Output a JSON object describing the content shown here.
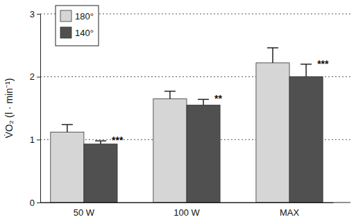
{
  "chart_data": {
    "type": "bar",
    "y_label": "V̇O₂ (l · min⁻¹)",
    "categories": [
      "50 W",
      "100 W",
      "MAX"
    ],
    "series": [
      {
        "name": "180°",
        "color": "#d6d6d6",
        "values": [
          1.12,
          1.65,
          2.22
        ],
        "errors": [
          0.12,
          0.12,
          0.24
        ]
      },
      {
        "name": "140°",
        "color": "#505050",
        "values": [
          0.93,
          1.55,
          2.0
        ],
        "errors": [
          0.05,
          0.09,
          0.2
        ],
        "annotations": [
          "***",
          "**",
          "***"
        ]
      }
    ],
    "ylim": [
      0,
      3
    ],
    "yticks": [
      0,
      1,
      2,
      3
    ],
    "grid": true,
    "legend": "upper left"
  }
}
